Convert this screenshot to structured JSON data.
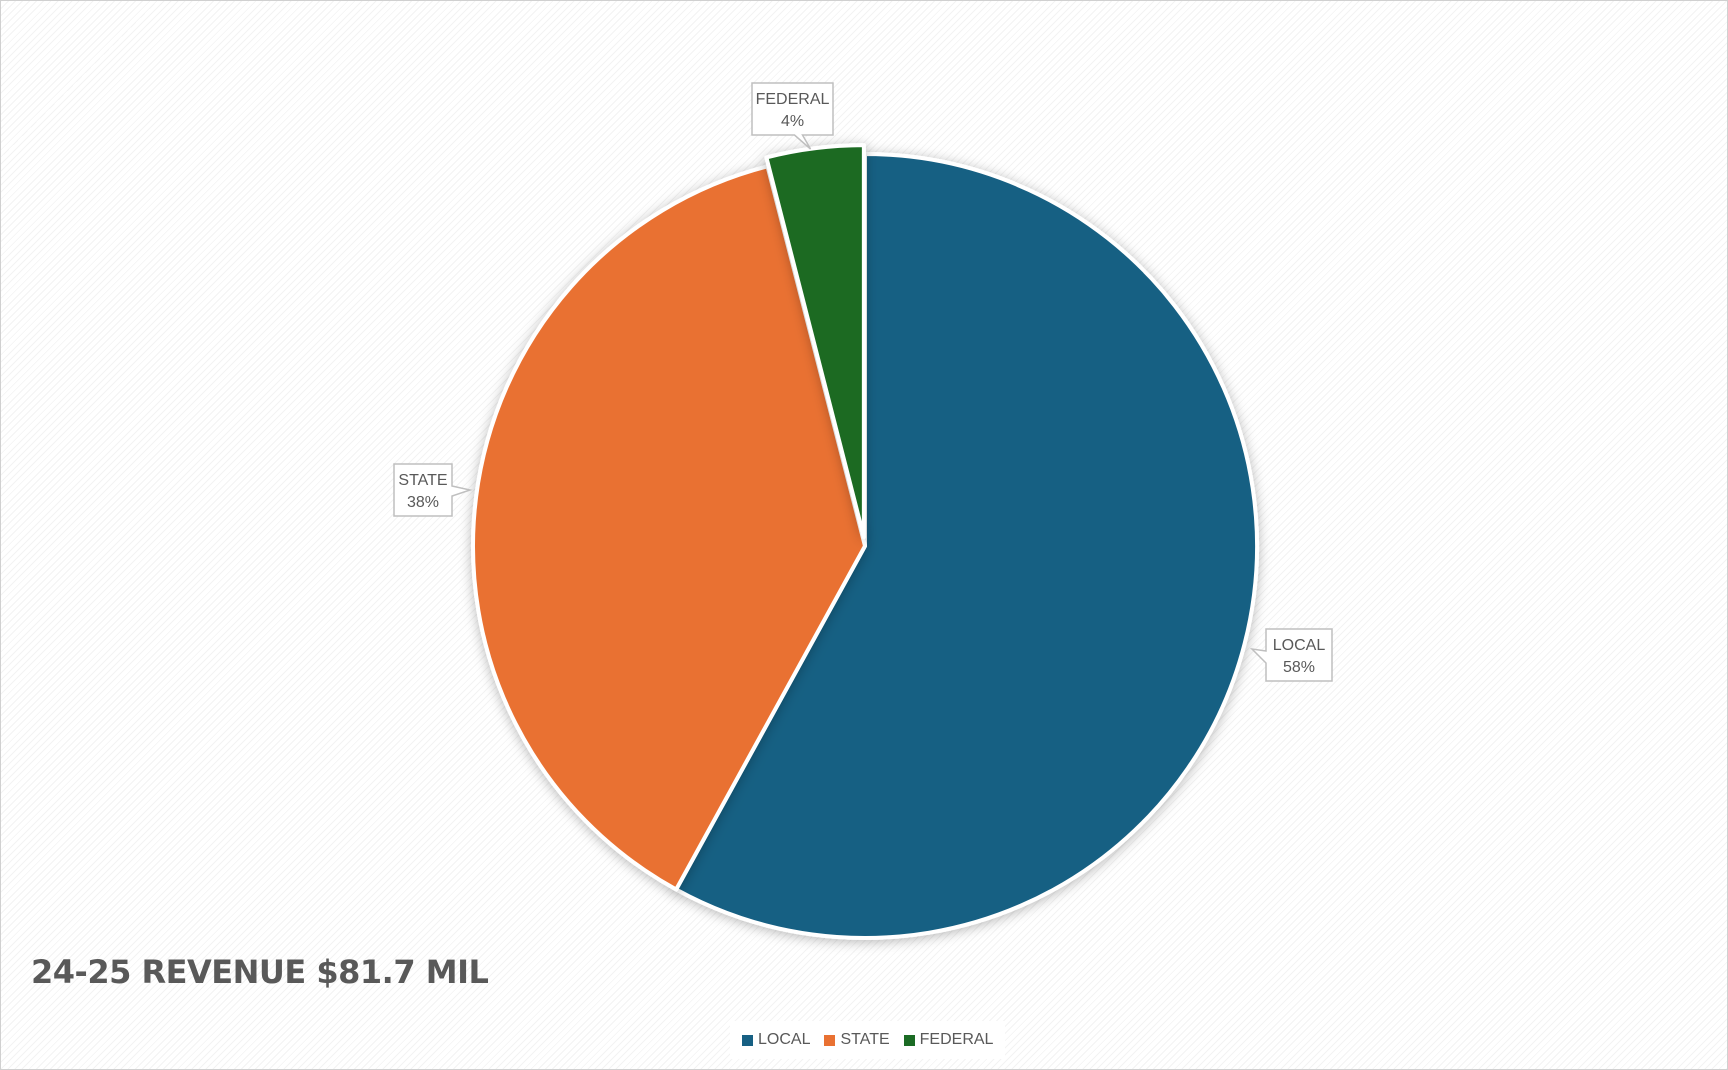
{
  "chart_data": {
    "type": "pie",
    "title": "24-25 REVENUE $81.7 MIL",
    "categories": [
      "LOCAL",
      "STATE",
      "FEDERAL"
    ],
    "values": [
      58,
      38,
      4
    ],
    "value_format": "percent",
    "colors": [
      "#176083",
      "#E97132",
      "#1B6B24"
    ],
    "data_labels": [
      {
        "category": "LOCAL",
        "value": "58%"
      },
      {
        "category": "STATE",
        "value": "38%"
      },
      {
        "category": "FEDERAL",
        "value": "4%"
      }
    ],
    "legend": {
      "placement": "bottom",
      "entries": [
        "LOCAL",
        "STATE",
        "FEDERAL"
      ]
    }
  }
}
